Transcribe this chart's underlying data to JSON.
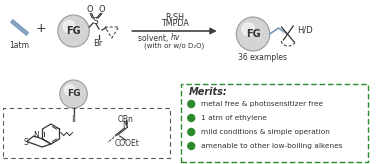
{
  "bg_color": "#ffffff",
  "green_dot_color": "#2d8a2d",
  "dashed_border_color": "#2d8a2d",
  "arrow_color": "#404040",
  "ball_color": "#d4d4d4",
  "ball_edge_color": "#999999",
  "text_1atm": "1atm",
  "text_rsh": "R-SH",
  "text_tmpda": "TMPDA",
  "text_solvent": "solvent, ",
  "text_36": "36 examples",
  "merits_title": "Merits:",
  "merits": [
    "metal free & photosensitizer free",
    "1 atm of ethylene",
    "mild conditions & simple operation",
    "amenable to other low-boiling alkenes"
  ],
  "ethylene_color": "#7799bb",
  "bond_color": "#333333",
  "label_II": "II",
  "dark_gray": "#333333",
  "mid_gray": "#555555"
}
